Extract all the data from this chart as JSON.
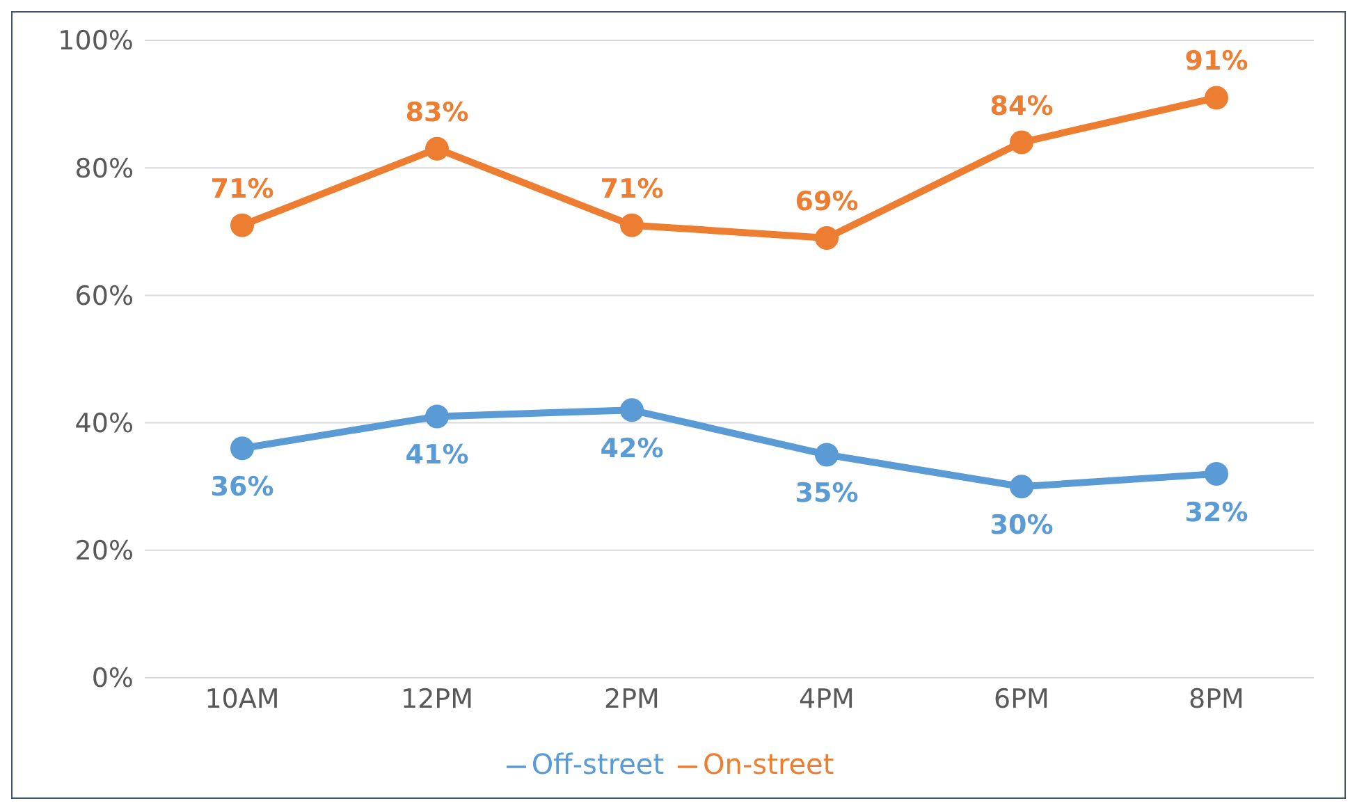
{
  "chart_data": {
    "type": "line",
    "categories": [
      "10AM",
      "12PM",
      "2PM",
      "4PM",
      "6PM",
      "8PM"
    ],
    "series": [
      {
        "name": "On-street",
        "color": "#ed7d31",
        "values": [
          71,
          83,
          71,
          69,
          84,
          91
        ],
        "value_labels": [
          "71%",
          "83%",
          "71%",
          "69%",
          "84%",
          "91%"
        ]
      },
      {
        "name": "Off-street",
        "color": "#5b9bd5",
        "values": [
          36,
          41,
          42,
          35,
          30,
          32
        ],
        "value_labels": [
          "36%",
          "41%",
          "42%",
          "35%",
          "30%",
          "32%"
        ]
      }
    ],
    "ylim": [
      0,
      100
    ],
    "yticks": [
      {
        "value": 0,
        "label": "0%"
      },
      {
        "value": 20,
        "label": "20%"
      },
      {
        "value": 40,
        "label": "40%"
      },
      {
        "value": 60,
        "label": "60%"
      },
      {
        "value": 80,
        "label": "80%"
      },
      {
        "value": 100,
        "label": "100%"
      }
    ],
    "grid": "y",
    "legend": "bottom",
    "marker": "circle",
    "line_style": "solid"
  }
}
